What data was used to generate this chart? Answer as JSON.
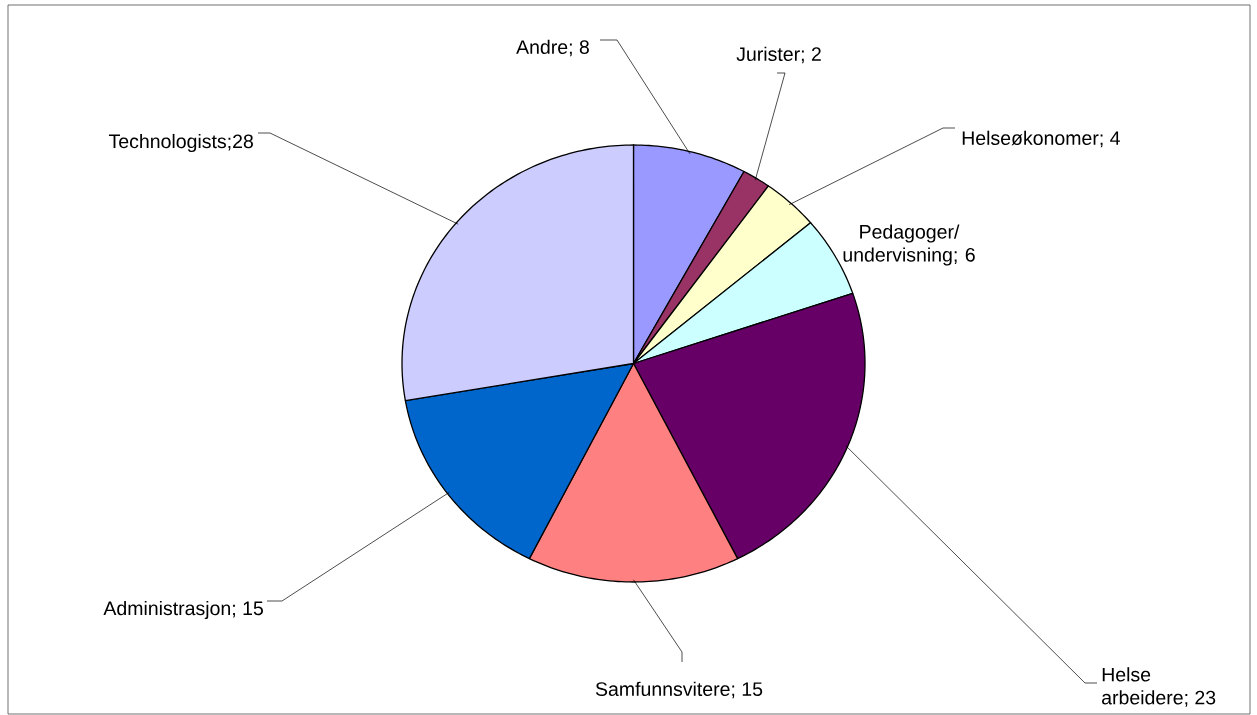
{
  "chart_data": {
    "type": "pie",
    "categories": [
      "Andre",
      "Jurister",
      "Helseøkonomer",
      "Pedagoger/ undervisning",
      "Helse arbeidere",
      "Samfunnsvitere",
      "Administrasjon",
      "Technologists"
    ],
    "values": [
      8,
      2,
      4,
      6,
      23,
      15,
      15,
      28
    ],
    "colors": [
      "#9999ff",
      "#993366",
      "#ffffcc",
      "#ccffff",
      "#660066",
      "#ff8080",
      "#0066cc",
      "#ccccff"
    ],
    "value_labels": [
      "; 8",
      "; 2",
      "; 4",
      "; 6",
      "; 23",
      "; 15",
      "; 15",
      ";28"
    ]
  }
}
